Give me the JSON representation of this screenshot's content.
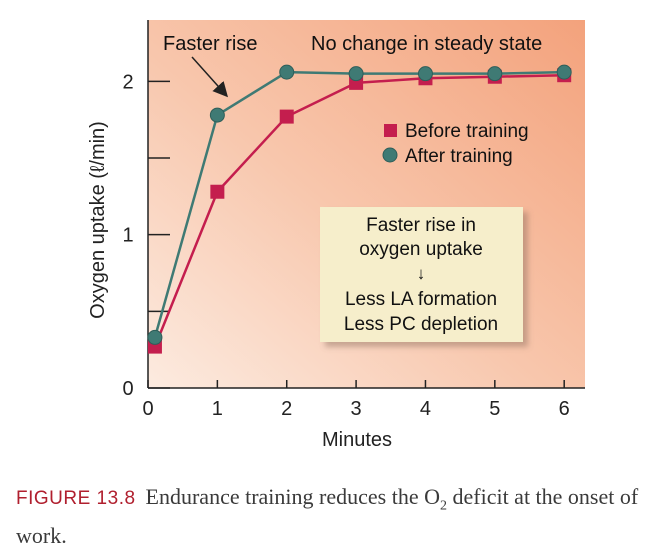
{
  "chart_data": {
    "type": "line",
    "xlabel": "Minutes",
    "ylabel": "Oxygen uptake (ℓ/min)",
    "xlim": [
      0,
      6.3
    ],
    "ylim": [
      0,
      2.4
    ],
    "x_ticks": [
      0,
      1,
      2,
      3,
      4,
      5,
      6
    ],
    "y_ticks": [
      0,
      1,
      2
    ],
    "x_tick_labels": [
      "0",
      "1",
      "2",
      "3",
      "4",
      "5",
      "6"
    ],
    "y_tick_labels": [
      "0",
      "1",
      "2"
    ],
    "y_minor_ticks": [
      0.5,
      1.5
    ],
    "series": [
      {
        "name": "Before training",
        "marker": "square",
        "color": "#c41e4e",
        "x": [
          0.1,
          1,
          2,
          3,
          4,
          5,
          6
        ],
        "y": [
          0.27,
          1.28,
          1.77,
          1.99,
          2.02,
          2.03,
          2.04
        ]
      },
      {
        "name": "After training",
        "marker": "circle",
        "color": "#3f7a74",
        "x": [
          0.1,
          1,
          2,
          3,
          4,
          5,
          6
        ],
        "y": [
          0.33,
          1.78,
          2.06,
          2.05,
          2.05,
          2.05,
          2.06
        ]
      }
    ],
    "annotations": {
      "faster_rise": "Faster rise",
      "steady_state": "No change in steady state"
    },
    "legend_position": "right-middle",
    "callout": {
      "line1": "Faster rise in",
      "line2": "oxygen uptake",
      "arrow": "↓",
      "line3": "Less LA formation",
      "line4": "Less PC depletion"
    }
  },
  "caption": {
    "figure_label": "FIGURE 13.8",
    "text_before_sub": "Endurance training reduces the O",
    "subscript": "2",
    "text_after_sub": " deficit at the onset of work."
  },
  "colors": {
    "bg_top_right": "#f7b08c",
    "bg_bottom_left": "#fbe4d6",
    "callout_fill": "#f7efca",
    "axis": "#222222"
  }
}
